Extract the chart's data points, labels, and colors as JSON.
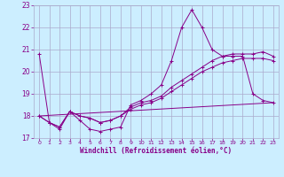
{
  "xlabel": "Windchill (Refroidissement éolien,°C)",
  "background_color": "#cceeff",
  "grid_color": "#aaaacc",
  "line_color": "#880088",
  "xlim": [
    -0.5,
    23.5
  ],
  "ylim": [
    17.0,
    23.0
  ],
  "yticks": [
    17,
    18,
    19,
    20,
    21,
    22,
    23
  ],
  "xticks": [
    0,
    1,
    2,
    3,
    4,
    5,
    6,
    7,
    8,
    9,
    10,
    11,
    12,
    13,
    14,
    15,
    16,
    17,
    18,
    19,
    20,
    21,
    22,
    23
  ],
  "series": [
    {
      "x": [
        0,
        1,
        2,
        3,
        4,
        5,
        6,
        7,
        8,
        9,
        10,
        11,
        12,
        13,
        14,
        15,
        16,
        17,
        18,
        19,
        20,
        21,
        22,
        23
      ],
      "y": [
        20.8,
        17.7,
        17.4,
        18.2,
        17.8,
        17.4,
        17.3,
        17.4,
        17.5,
        18.5,
        18.7,
        19.0,
        19.4,
        20.5,
        22.0,
        22.8,
        22.0,
        21.0,
        20.7,
        20.7,
        20.7,
        19.0,
        18.7,
        18.6
      ],
      "marker": "+"
    },
    {
      "x": [
        0,
        1,
        2,
        3,
        4,
        5,
        6,
        7,
        8,
        9,
        10,
        11,
        12,
        13,
        14,
        15,
        16,
        17,
        18,
        19,
        20,
        21,
        22,
        23
      ],
      "y": [
        18.0,
        17.7,
        17.5,
        18.2,
        18.0,
        17.9,
        17.7,
        17.8,
        18.0,
        18.4,
        18.6,
        18.7,
        18.9,
        19.3,
        19.6,
        19.9,
        20.2,
        20.5,
        20.7,
        20.8,
        20.8,
        20.8,
        20.9,
        20.7
      ],
      "marker": "+"
    },
    {
      "x": [
        0,
        1,
        2,
        3,
        4,
        5,
        6,
        7,
        8,
        9,
        10,
        11,
        12,
        13,
        14,
        15,
        16,
        17,
        18,
        19,
        20,
        21,
        22,
        23
      ],
      "y": [
        18.0,
        17.7,
        17.5,
        18.2,
        18.0,
        17.9,
        17.7,
        17.8,
        18.0,
        18.3,
        18.5,
        18.6,
        18.8,
        19.1,
        19.4,
        19.7,
        20.0,
        20.2,
        20.4,
        20.5,
        20.6,
        20.6,
        20.6,
        20.5
      ],
      "marker": "+"
    },
    {
      "x": [
        0,
        23
      ],
      "y": [
        18.0,
        18.6
      ],
      "marker": null
    }
  ]
}
